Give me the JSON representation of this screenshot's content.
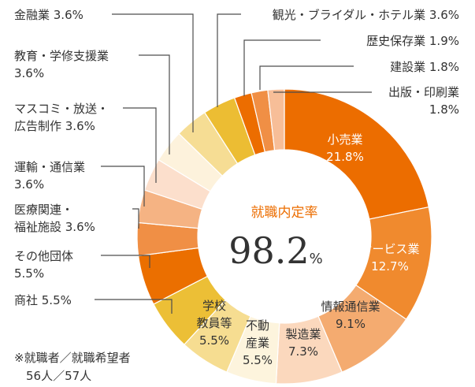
{
  "chart_data": {
    "type": "pie",
    "donut": true,
    "center": {
      "caption": "就職内定率",
      "value": "98.2",
      "unit": "%"
    },
    "slices": [
      {
        "label": [
          "小売業",
          "21.8%"
        ],
        "value": 21.8,
        "color": "#ec6d00",
        "text_color": "#ffffff"
      },
      {
        "label": [
          "サービス業",
          "12.7%"
        ],
        "value": 12.7,
        "color": "#f08a2e",
        "text_color": "#ffffff"
      },
      {
        "label": [
          "情報通信業",
          "9.1%"
        ],
        "value": 9.1,
        "color": "#f4ab70",
        "text_color": "#333333"
      },
      {
        "label": [
          "製造業",
          "7.3%"
        ],
        "value": 7.3,
        "color": "#fbd8bd",
        "text_color": "#333333"
      },
      {
        "label": [
          "不動",
          "産業",
          "5.5%"
        ],
        "value": 5.5,
        "color": "#fdf4dd",
        "text_color": "#333333"
      },
      {
        "label": [
          "学校",
          "教員等",
          "5.5%"
        ],
        "value": 5.5,
        "color": "#f6dd91",
        "text_color": "#333333"
      },
      {
        "label": [
          "商社 5.5%"
        ],
        "value": 5.5,
        "color": "#ecbf36",
        "text_color": "#333333"
      },
      {
        "label": [
          "その他団体",
          "5.5%"
        ],
        "value": 5.5,
        "color": "#eb6f00",
        "text_color": "#333333"
      },
      {
        "label": [
          "医療関連・",
          "福祉施設 3.6%"
        ],
        "value": 3.6,
        "color": "#f08f45",
        "text_color": "#333333"
      },
      {
        "label": [
          "運輸・通信業",
          "3.6%"
        ],
        "value": 3.6,
        "color": "#f5b383",
        "text_color": "#333333"
      },
      {
        "label": [
          "マスコミ・放送・",
          "広告制作 3.6%"
        ],
        "value": 3.6,
        "color": "#fcdfcc",
        "text_color": "#333333"
      },
      {
        "label": [
          "教育・学修支援業",
          "3.6%"
        ],
        "value": 3.6,
        "color": "#fdf2dc",
        "text_color": "#333333"
      },
      {
        "label": [
          "金融業 3.6%"
        ],
        "value": 3.6,
        "color": "#f6dd94",
        "text_color": "#333333"
      },
      {
        "label": [
          "観光・ブライダル・ホテル業 3.6%"
        ],
        "value": 3.6,
        "color": "#ecbd33",
        "text_color": "#333333"
      },
      {
        "label": [
          "歴史保存業 1.9%"
        ],
        "value": 1.9,
        "color": "#ec6d00",
        "text_color": "#333333"
      },
      {
        "label": [
          "建設業 1.8%"
        ],
        "value": 1.8,
        "color": "#f08f45",
        "text_color": "#333333"
      },
      {
        "label": [
          "出版・印刷業",
          "1.8%"
        ],
        "value": 1.8,
        "color": "#f7be98",
        "text_color": "#333333"
      }
    ]
  },
  "footnote": [
    "※就職者／就職希望者",
    "　56人／57人"
  ]
}
